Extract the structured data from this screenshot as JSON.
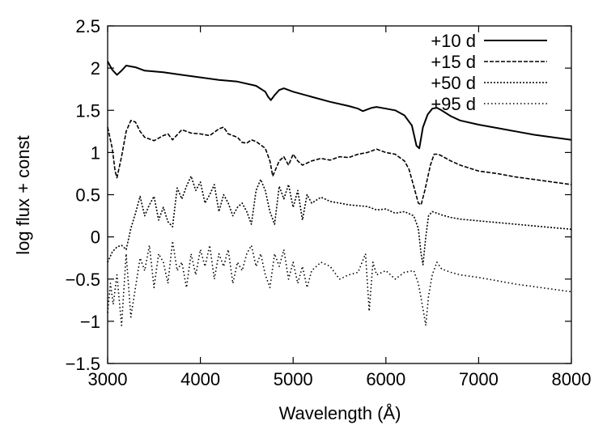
{
  "chart_data": {
    "type": "line",
    "title": "",
    "xlabel": "Wavelength (Å)",
    "ylabel": "log flux + const",
    "xlim": [
      3000,
      8000
    ],
    "ylim": [
      -1.5,
      2.5
    ],
    "x_ticks": [
      3000,
      4000,
      5000,
      6000,
      7000,
      8000
    ],
    "x_tick_labels": [
      "3000",
      "4000",
      "5000",
      "6000",
      "7000",
      "8000"
    ],
    "y_ticks": [
      -1.5,
      -1,
      -0.5,
      0,
      0.5,
      1,
      1.5,
      2,
      2.5
    ],
    "y_tick_labels": [
      "−1.5",
      "−1",
      "−0.5",
      "0",
      "0.5",
      "1",
      "1.5",
      "2",
      "2.5"
    ],
    "grid": false,
    "legend_position": "top-right",
    "series": [
      {
        "name": "+10 d",
        "dash": "solid",
        "x": [
          3000,
          3050,
          3100,
          3150,
          3200,
          3300,
          3400,
          3600,
          3800,
          4000,
          4200,
          4400,
          4600,
          4700,
          4730,
          4760,
          4800,
          4850,
          4900,
          5000,
          5200,
          5400,
          5600,
          5700,
          5750,
          5800,
          5850,
          5900,
          6000,
          6100,
          6200,
          6280,
          6330,
          6360,
          6400,
          6450,
          6500,
          6550,
          6600,
          6700,
          6800,
          7000,
          7200,
          7400,
          7600,
          7800,
          8000
        ],
        "y": [
          2.08,
          1.98,
          1.92,
          1.97,
          2.03,
          2.01,
          1.97,
          1.95,
          1.92,
          1.89,
          1.86,
          1.84,
          1.79,
          1.72,
          1.66,
          1.62,
          1.68,
          1.74,
          1.76,
          1.72,
          1.66,
          1.6,
          1.55,
          1.52,
          1.49,
          1.51,
          1.53,
          1.54,
          1.52,
          1.5,
          1.44,
          1.32,
          1.08,
          1.05,
          1.3,
          1.45,
          1.52,
          1.53,
          1.5,
          1.43,
          1.38,
          1.33,
          1.29,
          1.25,
          1.21,
          1.18,
          1.15
        ]
      },
      {
        "name": "+15 d",
        "dash": "dashed",
        "x": [
          3000,
          3050,
          3080,
          3100,
          3150,
          3200,
          3250,
          3300,
          3350,
          3400,
          3500,
          3600,
          3650,
          3700,
          3800,
          3900,
          4000,
          4100,
          4200,
          4250,
          4300,
          4350,
          4400,
          4450,
          4500,
          4550,
          4600,
          4700,
          4750,
          4780,
          4850,
          4900,
          4950,
          5000,
          5050,
          5100,
          5200,
          5300,
          5400,
          5500,
          5600,
          5700,
          5800,
          5900,
          6000,
          6100,
          6200,
          6250,
          6300,
          6350,
          6380,
          6420,
          6480,
          6520,
          6560,
          6600,
          6700,
          6800,
          7000,
          7200,
          7400,
          7600,
          7800,
          8000
        ],
        "y": [
          1.3,
          1.05,
          0.78,
          0.7,
          0.95,
          1.25,
          1.38,
          1.36,
          1.25,
          1.18,
          1.14,
          1.2,
          1.22,
          1.15,
          1.27,
          1.23,
          1.22,
          1.2,
          1.28,
          1.3,
          1.22,
          1.2,
          1.18,
          1.12,
          1.11,
          1.15,
          1.13,
          1.05,
          0.9,
          0.72,
          0.9,
          0.95,
          0.85,
          0.98,
          0.9,
          0.85,
          0.9,
          0.93,
          0.91,
          0.95,
          0.94,
          0.98,
          1.0,
          1.04,
          1.0,
          0.98,
          0.9,
          0.8,
          0.6,
          0.4,
          0.38,
          0.55,
          0.85,
          0.98,
          0.98,
          0.96,
          0.9,
          0.85,
          0.78,
          0.75,
          0.71,
          0.68,
          0.65,
          0.62
        ]
      },
      {
        "name": "+50 d",
        "dash": "short-dotted",
        "x": [
          3000,
          3050,
          3100,
          3150,
          3200,
          3250,
          3300,
          3350,
          3400,
          3450,
          3500,
          3550,
          3600,
          3650,
          3700,
          3750,
          3800,
          3850,
          3900,
          3950,
          4000,
          4050,
          4100,
          4150,
          4200,
          4250,
          4300,
          4350,
          4400,
          4450,
          4500,
          4550,
          4600,
          4650,
          4700,
          4750,
          4800,
          4850,
          4900,
          4950,
          5000,
          5050,
          5100,
          5150,
          5200,
          5300,
          5400,
          5500,
          5600,
          5700,
          5800,
          5900,
          6000,
          6100,
          6200,
          6300,
          6350,
          6380,
          6400,
          6430,
          6460,
          6500,
          6550,
          6600,
          6700,
          6800,
          7000,
          7200,
          7400,
          7600,
          7800,
          8000
        ],
        "y": [
          -0.3,
          -0.18,
          -0.12,
          -0.1,
          -0.15,
          0.1,
          0.28,
          0.48,
          0.25,
          0.38,
          0.48,
          0.2,
          0.35,
          0.18,
          0.12,
          0.58,
          0.45,
          0.6,
          0.72,
          0.55,
          0.65,
          0.4,
          0.5,
          0.62,
          0.3,
          0.5,
          0.4,
          0.25,
          0.35,
          0.4,
          0.3,
          0.15,
          0.55,
          0.68,
          0.55,
          0.3,
          0.15,
          0.6,
          0.45,
          0.62,
          0.35,
          0.55,
          0.2,
          0.5,
          0.4,
          0.47,
          0.42,
          0.4,
          0.38,
          0.37,
          0.36,
          0.32,
          0.33,
          0.28,
          0.3,
          0.25,
          0.1,
          -0.2,
          -0.33,
          0.0,
          0.25,
          0.3,
          0.28,
          0.26,
          0.23,
          0.21,
          0.19,
          0.17,
          0.15,
          0.13,
          0.11,
          0.09
        ]
      },
      {
        "name": "+95 d",
        "dash": "sparse-dotted",
        "x": [
          3000,
          3030,
          3060,
          3100,
          3150,
          3200,
          3250,
          3300,
          3350,
          3400,
          3450,
          3500,
          3550,
          3600,
          3650,
          3700,
          3750,
          3800,
          3850,
          3900,
          3950,
          4000,
          4050,
          4100,
          4150,
          4200,
          4250,
          4300,
          4350,
          4400,
          4450,
          4500,
          4550,
          4600,
          4650,
          4700,
          4750,
          4800,
          4850,
          4900,
          4950,
          5000,
          5050,
          5100,
          5150,
          5200,
          5300,
          5400,
          5500,
          5600,
          5700,
          5780,
          5820,
          5860,
          5900,
          6000,
          6100,
          6200,
          6300,
          6350,
          6400,
          6430,
          6460,
          6500,
          6550,
          6600,
          6700,
          6800,
          7000,
          7200,
          7400,
          7600,
          7800,
          8000
        ],
        "y": [
          -0.9,
          -0.55,
          -0.8,
          -0.45,
          -1.05,
          -0.2,
          -0.95,
          -0.6,
          -0.25,
          -0.4,
          -0.1,
          -0.6,
          -0.2,
          -0.3,
          -0.55,
          -0.05,
          -0.4,
          -0.3,
          -0.6,
          -0.2,
          -0.45,
          -0.15,
          -0.35,
          -0.1,
          -0.5,
          -0.2,
          -0.35,
          -0.15,
          -0.55,
          -0.3,
          -0.4,
          -0.2,
          -0.1,
          -0.35,
          -0.2,
          -0.45,
          -0.6,
          -0.2,
          -0.35,
          -0.15,
          -0.5,
          -0.3,
          -0.55,
          -0.35,
          -0.6,
          -0.4,
          -0.3,
          -0.35,
          -0.5,
          -0.45,
          -0.42,
          -0.2,
          -0.88,
          -0.3,
          -0.45,
          -0.4,
          -0.5,
          -0.42,
          -0.4,
          -0.55,
          -0.85,
          -1.05,
          -0.7,
          -0.45,
          -0.3,
          -0.38,
          -0.42,
          -0.45,
          -0.48,
          -0.52,
          -0.56,
          -0.59,
          -0.62,
          -0.65
        ]
      }
    ]
  }
}
